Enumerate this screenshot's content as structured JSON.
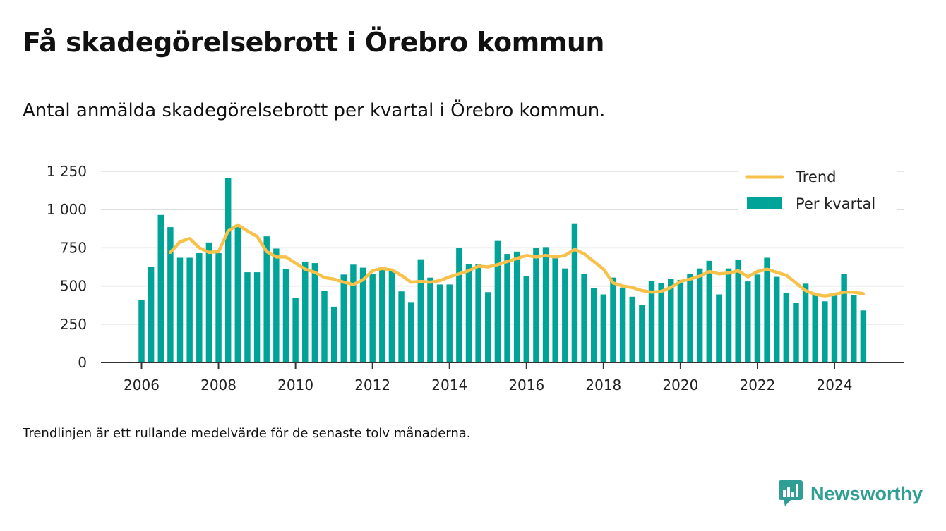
{
  "header": {
    "title": "Få skadegörelsebrott i Örebro kommun",
    "subtitle": "Antal anmälda skadegörelsebrott per kvartal i Örebro kommun."
  },
  "footer": {
    "note": "Trendlinjen är ett rullande medelvärde för de senaste tolv månaderna.",
    "brand": "Newsworthy"
  },
  "colors": {
    "bar": "#00a398",
    "trend": "#f8c14a",
    "grid": "#dddddd",
    "axis": "#333333",
    "brand": "#2f9f95"
  },
  "chart_data": {
    "type": "bar",
    "title": "",
    "xlabel": "",
    "ylabel": "",
    "ylim": [
      0,
      1250
    ],
    "yticks": [
      0,
      250,
      500,
      750,
      1000,
      1250
    ],
    "ytick_labels": [
      "0",
      "250",
      "500",
      "750",
      "1 000",
      "1 250"
    ],
    "xticks": [
      2006,
      2008,
      2010,
      2012,
      2014,
      2016,
      2018,
      2020,
      2022,
      2024
    ],
    "xtick_labels": [
      "2006",
      "2008",
      "2010",
      "2012",
      "2014",
      "2016",
      "2018",
      "2020",
      "2022",
      "2024"
    ],
    "grid": true,
    "legend": {
      "position": "top-right",
      "entries": [
        "Trend",
        "Per kvartal"
      ]
    },
    "categories": [
      "2006 Q1",
      "2006 Q2",
      "2006 Q3",
      "2006 Q4",
      "2007 Q1",
      "2007 Q2",
      "2007 Q3",
      "2007 Q4",
      "2008 Q1",
      "2008 Q2",
      "2008 Q3",
      "2008 Q4",
      "2009 Q1",
      "2009 Q2",
      "2009 Q3",
      "2009 Q4",
      "2010 Q1",
      "2010 Q2",
      "2010 Q3",
      "2010 Q4",
      "2011 Q1",
      "2011 Q2",
      "2011 Q3",
      "2011 Q4",
      "2012 Q1",
      "2012 Q2",
      "2012 Q3",
      "2012 Q4",
      "2013 Q1",
      "2013 Q2",
      "2013 Q3",
      "2013 Q4",
      "2014 Q1",
      "2014 Q2",
      "2014 Q3",
      "2014 Q4",
      "2015 Q1",
      "2015 Q2",
      "2015 Q3",
      "2015 Q4",
      "2016 Q1",
      "2016 Q2",
      "2016 Q3",
      "2016 Q4",
      "2017 Q1",
      "2017 Q2",
      "2017 Q3",
      "2017 Q4",
      "2018 Q1",
      "2018 Q2",
      "2018 Q3",
      "2018 Q4",
      "2019 Q1",
      "2019 Q2",
      "2019 Q3",
      "2019 Q4",
      "2020 Q1",
      "2020 Q2",
      "2020 Q3",
      "2020 Q4",
      "2021 Q1",
      "2021 Q2",
      "2021 Q3",
      "2021 Q4",
      "2022 Q1",
      "2022 Q2",
      "2022 Q3",
      "2022 Q4",
      "2023 Q1",
      "2023 Q2",
      "2023 Q3",
      "2023 Q4",
      "2024 Q1",
      "2024 Q2",
      "2024 Q3",
      "2024 Q4"
    ],
    "series": [
      {
        "name": "Per kvartal",
        "type": "bar",
        "values": [
          410,
          625,
          965,
          885,
          685,
          685,
          715,
          785,
          715,
          1205,
          885,
          590,
          590,
          825,
          745,
          610,
          420,
          660,
          650,
          470,
          365,
          575,
          640,
          620,
          580,
          610,
          600,
          465,
          395,
          675,
          555,
          510,
          510,
          750,
          645,
          645,
          460,
          795,
          710,
          725,
          565,
          750,
          755,
          690,
          615,
          910,
          580,
          485,
          445,
          555,
          490,
          430,
          375,
          535,
          520,
          545,
          540,
          580,
          615,
          665,
          445,
          615,
          670,
          530,
          575,
          685,
          560,
          455,
          390,
          515,
          450,
          400,
          440,
          580,
          440,
          340
        ]
      },
      {
        "name": "Trend",
        "type": "line",
        "values": [
          null,
          null,
          null,
          720,
          790,
          810,
          750,
          720,
          725,
          860,
          900,
          860,
          825,
          725,
          690,
          690,
          650,
          610,
          590,
          555,
          545,
          525,
          510,
          540,
          600,
          615,
          605,
          570,
          525,
          530,
          525,
          535,
          560,
          580,
          600,
          630,
          625,
          640,
          660,
          680,
          700,
          690,
          700,
          690,
          700,
          740,
          710,
          660,
          610,
          520,
          500,
          490,
          470,
          460,
          465,
          490,
          530,
          545,
          565,
          595,
          580,
          585,
          600,
          560,
          595,
          610,
          590,
          570,
          520,
          470,
          445,
          435,
          445,
          460,
          460,
          450
        ]
      }
    ]
  }
}
